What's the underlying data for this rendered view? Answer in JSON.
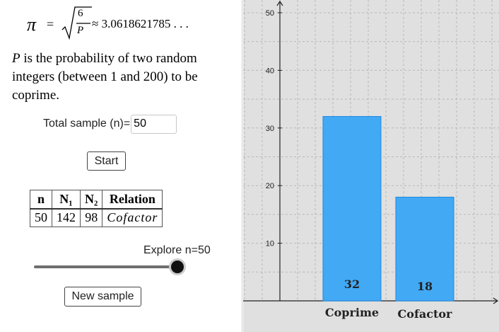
{
  "formula": {
    "pi_symbol": "π",
    "equals": "=",
    "numerator": "6",
    "denominator": "P",
    "approx_value": "≈ 3.0618621785 . . ."
  },
  "description": {
    "var": "P",
    "text": " is the probability of two random integers (between 1 and 200) to be coprime."
  },
  "sample": {
    "label": "Total sample (n)=",
    "value": "50"
  },
  "buttons": {
    "start": "Start",
    "new_sample": "New sample"
  },
  "table": {
    "headers": [
      "n",
      "N₁",
      "N₂",
      "Relation"
    ],
    "row": [
      "50",
      "142",
      "98",
      "Cofactor"
    ]
  },
  "slider": {
    "caption": "Explore n=50",
    "value_fraction": 1.0
  },
  "chart_data": {
    "type": "bar",
    "categories": [
      "Coprime",
      "Cofactor"
    ],
    "values": [
      32,
      18
    ],
    "ylim": [
      0,
      53
    ],
    "yticks": [
      10,
      20,
      30,
      40,
      50
    ],
    "grid": true,
    "bar_color": "#42a9f5",
    "bar_edge_color": "#1e88e5"
  }
}
